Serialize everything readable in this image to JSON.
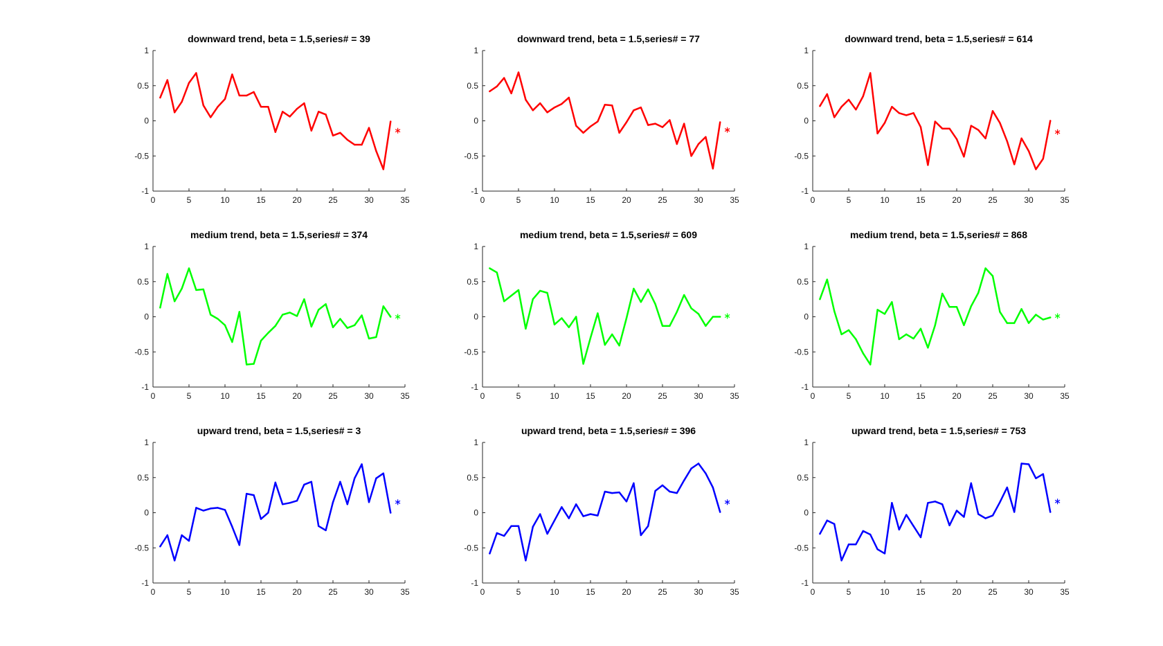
{
  "chart_data": [
    {
      "type": "line",
      "title": "downward trend, beta = 1.5,series# = 39",
      "color": "#ff0000",
      "xlim": [
        0,
        35
      ],
      "ylim": [
        -1,
        1
      ],
      "xticks": [
        0,
        5,
        10,
        15,
        20,
        25,
        30,
        35
      ],
      "yticks": [
        -1,
        -0.5,
        0,
        0.5,
        1
      ],
      "x": [
        1,
        2,
        3,
        4,
        5,
        6,
        7,
        8,
        9,
        10,
        11,
        12,
        13,
        14,
        15,
        16,
        17,
        18,
        19,
        20,
        21,
        22,
        23,
        24,
        25,
        26,
        27,
        28,
        29,
        30,
        31,
        32,
        33
      ],
      "y": [
        0.33,
        0.58,
        0.12,
        0.27,
        0.54,
        0.68,
        0.22,
        0.05,
        0.2,
        0.31,
        0.66,
        0.36,
        0.36,
        0.41,
        0.2,
        0.2,
        -0.16,
        0.13,
        0.06,
        0.17,
        0.25,
        -0.14,
        0.13,
        0.09,
        -0.21,
        -0.17,
        -0.27,
        -0.34,
        -0.34,
        -0.1,
        -0.43,
        -0.69,
        -0.01
      ],
      "forecast": {
        "x": 34,
        "y": -0.14
      }
    },
    {
      "type": "line",
      "title": "downward trend, beta = 1.5,series# = 77",
      "color": "#ff0000",
      "xlim": [
        0,
        35
      ],
      "ylim": [
        -1,
        1
      ],
      "xticks": [
        0,
        5,
        10,
        15,
        20,
        25,
        30,
        35
      ],
      "yticks": [
        -1,
        -0.5,
        0,
        0.5,
        1
      ],
      "x": [
        1,
        2,
        3,
        4,
        5,
        6,
        7,
        8,
        9,
        10,
        11,
        12,
        13,
        14,
        15,
        16,
        17,
        18,
        19,
        20,
        21,
        22,
        23,
        24,
        25,
        26,
        27,
        28,
        29,
        30,
        31,
        32,
        33
      ],
      "y": [
        0.42,
        0.49,
        0.61,
        0.39,
        0.69,
        0.3,
        0.15,
        0.25,
        0.12,
        0.19,
        0.24,
        0.33,
        -0.07,
        -0.17,
        -0.08,
        -0.01,
        0.23,
        0.22,
        -0.17,
        -0.02,
        0.15,
        0.19,
        -0.06,
        -0.04,
        -0.09,
        0.01,
        -0.33,
        -0.04,
        -0.5,
        -0.33,
        -0.23,
        -0.68,
        -0.02
      ],
      "forecast": {
        "x": 34,
        "y": -0.13
      }
    },
    {
      "type": "line",
      "title": "downward trend, beta = 1.5,series# = 614",
      "color": "#ff0000",
      "xlim": [
        0,
        35
      ],
      "ylim": [
        -1,
        1
      ],
      "xticks": [
        0,
        5,
        10,
        15,
        20,
        25,
        30,
        35
      ],
      "yticks": [
        -1,
        -0.5,
        0,
        0.5,
        1
      ],
      "x": [
        1,
        2,
        3,
        4,
        5,
        6,
        7,
        8,
        9,
        10,
        11,
        12,
        13,
        14,
        15,
        16,
        17,
        18,
        19,
        20,
        21,
        22,
        23,
        24,
        25,
        26,
        27,
        28,
        29,
        30,
        31,
        32,
        33
      ],
      "y": [
        0.21,
        0.38,
        0.05,
        0.2,
        0.3,
        0.16,
        0.35,
        0.68,
        -0.18,
        -0.03,
        0.2,
        0.11,
        0.08,
        0.11,
        -0.09,
        -0.63,
        -0.01,
        -0.11,
        -0.11,
        -0.26,
        -0.51,
        -0.07,
        -0.13,
        -0.25,
        0.14,
        -0.03,
        -0.29,
        -0.62,
        -0.25,
        -0.43,
        -0.69,
        -0.54,
        0.0
      ],
      "forecast": {
        "x": 34,
        "y": -0.16
      }
    },
    {
      "type": "line",
      "title": "medium trend, beta = 1.5,series# = 374",
      "color": "#00ff00",
      "xlim": [
        0,
        35
      ],
      "ylim": [
        -1,
        1
      ],
      "xticks": [
        0,
        5,
        10,
        15,
        20,
        25,
        30,
        35
      ],
      "yticks": [
        -1,
        -0.5,
        0,
        0.5,
        1
      ],
      "x": [
        1,
        2,
        3,
        4,
        5,
        6,
        7,
        8,
        9,
        10,
        11,
        12,
        13,
        14,
        15,
        16,
        17,
        18,
        19,
        20,
        21,
        22,
        23,
        24,
        25,
        26,
        27,
        28,
        29,
        30,
        31,
        32,
        33
      ],
      "y": [
        0.13,
        0.61,
        0.22,
        0.4,
        0.69,
        0.38,
        0.39,
        0.03,
        -0.03,
        -0.12,
        -0.36,
        0.07,
        -0.68,
        -0.67,
        -0.34,
        -0.23,
        -0.13,
        0.03,
        0.06,
        0.01,
        0.25,
        -0.14,
        0.1,
        0.18,
        -0.15,
        -0.03,
        -0.16,
        -0.12,
        0.02,
        -0.31,
        -0.29,
        0.15,
        0.0
      ],
      "forecast": {
        "x": 34,
        "y": 0.0
      }
    },
    {
      "type": "line",
      "title": "medium trend, beta = 1.5,series# = 609",
      "color": "#00ff00",
      "xlim": [
        0,
        35
      ],
      "ylim": [
        -1,
        1
      ],
      "xticks": [
        0,
        5,
        10,
        15,
        20,
        25,
        30,
        35
      ],
      "yticks": [
        -1,
        -0.5,
        0,
        0.5,
        1
      ],
      "x": [
        1,
        2,
        3,
        4,
        5,
        6,
        7,
        8,
        9,
        10,
        11,
        12,
        13,
        14,
        15,
        16,
        17,
        18,
        19,
        20,
        21,
        22,
        23,
        24,
        25,
        26,
        27,
        28,
        29,
        30,
        31,
        32,
        33
      ],
      "y": [
        0.69,
        0.63,
        0.22,
        0.3,
        0.38,
        -0.17,
        0.25,
        0.37,
        0.34,
        -0.11,
        -0.02,
        -0.15,
        0.0,
        -0.67,
        -0.3,
        0.05,
        -0.4,
        -0.25,
        -0.41,
        -0.02,
        0.4,
        0.21,
        0.39,
        0.18,
        -0.13,
        -0.13,
        0.07,
        0.31,
        0.12,
        0.04,
        -0.13,
        0.0,
        0.0
      ],
      "forecast": {
        "x": 34,
        "y": 0.01
      }
    },
    {
      "type": "line",
      "title": "medium trend, beta = 1.5,series# = 868",
      "color": "#00ff00",
      "xlim": [
        0,
        35
      ],
      "ylim": [
        -1,
        1
      ],
      "xticks": [
        0,
        5,
        10,
        15,
        20,
        25,
        30,
        35
      ],
      "yticks": [
        -1,
        -0.5,
        0,
        0.5,
        1
      ],
      "x": [
        1,
        2,
        3,
        4,
        5,
        6,
        7,
        8,
        9,
        10,
        11,
        12,
        13,
        14,
        15,
        16,
        17,
        18,
        19,
        20,
        21,
        22,
        23,
        24,
        25,
        26,
        27,
        28,
        29,
        30,
        31,
        32,
        33
      ],
      "y": [
        0.25,
        0.53,
        0.08,
        -0.25,
        -0.19,
        -0.32,
        -0.52,
        -0.68,
        0.1,
        0.04,
        0.21,
        -0.32,
        -0.25,
        -0.31,
        -0.17,
        -0.44,
        -0.12,
        0.33,
        0.14,
        0.14,
        -0.12,
        0.15,
        0.34,
        0.69,
        0.58,
        0.07,
        -0.09,
        -0.09,
        0.11,
        -0.09,
        0.03,
        -0.04,
        -0.01
      ],
      "forecast": {
        "x": 34,
        "y": 0.01
      }
    },
    {
      "type": "line",
      "title": "upward trend, beta = 1.5,series# = 3",
      "color": "#0000ff",
      "xlim": [
        0,
        35
      ],
      "ylim": [
        -1,
        1
      ],
      "xticks": [
        0,
        5,
        10,
        15,
        20,
        25,
        30,
        35
      ],
      "yticks": [
        -1,
        -0.5,
        0,
        0.5,
        1
      ],
      "x": [
        1,
        2,
        3,
        4,
        5,
        6,
        7,
        8,
        9,
        10,
        11,
        12,
        13,
        14,
        15,
        16,
        17,
        18,
        19,
        20,
        21,
        22,
        23,
        24,
        25,
        26,
        27,
        28,
        29,
        30,
        31,
        32,
        33
      ],
      "y": [
        -0.48,
        -0.32,
        -0.68,
        -0.32,
        -0.4,
        0.07,
        0.03,
        0.06,
        0.07,
        0.04,
        -0.2,
        -0.46,
        0.27,
        0.25,
        -0.09,
        0.0,
        0.43,
        0.12,
        0.14,
        0.17,
        0.4,
        0.44,
        -0.19,
        -0.25,
        0.15,
        0.44,
        0.12,
        0.49,
        0.69,
        0.15,
        0.49,
        0.56,
        0.0
      ],
      "forecast": {
        "x": 34,
        "y": 0.15
      }
    },
    {
      "type": "line",
      "title": "upward trend, beta = 1.5,series# = 396",
      "color": "#0000ff",
      "xlim": [
        0,
        35
      ],
      "ylim": [
        -1,
        1
      ],
      "xticks": [
        0,
        5,
        10,
        15,
        20,
        25,
        30,
        35
      ],
      "yticks": [
        -1,
        -0.5,
        0,
        0.5,
        1
      ],
      "x": [
        1,
        2,
        3,
        4,
        5,
        6,
        7,
        8,
        9,
        10,
        11,
        12,
        13,
        14,
        15,
        16,
        17,
        18,
        19,
        20,
        21,
        22,
        23,
        24,
        25,
        26,
        27,
        28,
        29,
        30,
        31,
        32,
        33
      ],
      "y": [
        -0.58,
        -0.29,
        -0.33,
        -0.19,
        -0.19,
        -0.68,
        -0.2,
        -0.02,
        -0.3,
        -0.11,
        0.08,
        -0.08,
        0.12,
        -0.05,
        -0.02,
        -0.04,
        0.3,
        0.28,
        0.29,
        0.16,
        0.42,
        -0.32,
        -0.19,
        0.31,
        0.39,
        0.3,
        0.28,
        0.46,
        0.63,
        0.7,
        0.56,
        0.36,
        0.01
      ],
      "forecast": {
        "x": 34,
        "y": 0.15
      }
    },
    {
      "type": "line",
      "title": "upward trend, beta = 1.5,series# = 753",
      "color": "#0000ff",
      "xlim": [
        0,
        35
      ],
      "ylim": [
        -1,
        1
      ],
      "xticks": [
        0,
        5,
        10,
        15,
        20,
        25,
        30,
        35
      ],
      "yticks": [
        -1,
        -0.5,
        0,
        0.5,
        1
      ],
      "x": [
        1,
        2,
        3,
        4,
        5,
        6,
        7,
        8,
        9,
        10,
        11,
        12,
        13,
        14,
        15,
        16,
        17,
        18,
        19,
        20,
        21,
        22,
        23,
        24,
        25,
        26,
        27,
        28,
        29,
        30,
        31,
        32,
        33
      ],
      "y": [
        -0.3,
        -0.11,
        -0.16,
        -0.68,
        -0.45,
        -0.45,
        -0.26,
        -0.31,
        -0.52,
        -0.58,
        0.14,
        -0.24,
        -0.03,
        -0.19,
        -0.35,
        0.14,
        0.16,
        0.12,
        -0.18,
        0.03,
        -0.06,
        0.42,
        -0.02,
        -0.08,
        -0.04,
        0.15,
        0.36,
        0.01,
        0.7,
        0.69,
        0.49,
        0.55,
        0.01
      ],
      "forecast": {
        "x": 34,
        "y": 0.16
      }
    }
  ]
}
